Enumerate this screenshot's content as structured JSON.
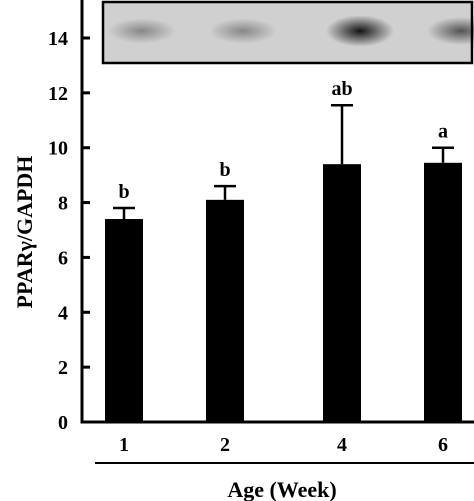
{
  "chart_data": {
    "type": "bar",
    "categories": [
      "1",
      "2",
      "4",
      "6"
    ],
    "values": [
      7.4,
      8.1,
      9.4,
      9.45
    ],
    "errors": [
      0.4,
      0.5,
      2.15,
      0.55
    ],
    "significance": [
      "b",
      "b",
      "ab",
      "a"
    ],
    "ylabel": "PPARγ/GAPDH",
    "xlabel": "Age (Week)",
    "ylim": [
      0,
      14
    ],
    "yticks": [
      0,
      2,
      4,
      6,
      8,
      10,
      12,
      14
    ],
    "grid": false,
    "bar_color": "#000000",
    "inset": "western blot band image",
    "blot_band_intensity": [
      0.15,
      0.15,
      0.95,
      0.5
    ]
  }
}
